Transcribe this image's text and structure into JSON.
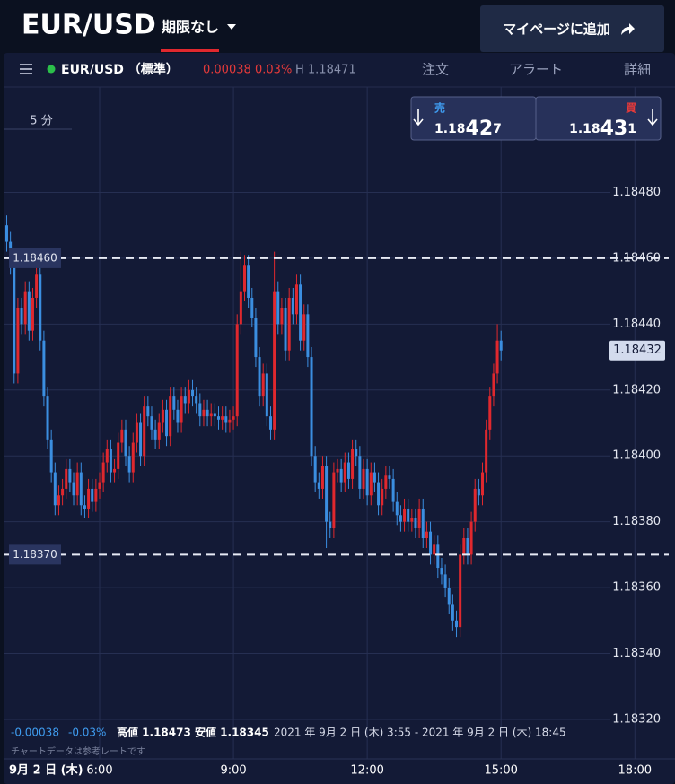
{
  "header": {
    "symbol": "EUR/USD",
    "period": "期限なし",
    "button": "マイページに追加"
  },
  "toolbar": {
    "symbol": "EUR/USD （標準）",
    "change": "0.00038",
    "change_pct": "0.03%",
    "high": "H 1.18471",
    "tabs": [
      "注文",
      "アラート",
      "詳細"
    ]
  },
  "timeframe": "5 分",
  "quote": {
    "sell_label": "売",
    "sell_parts": [
      "1.18",
      "42",
      "7"
    ],
    "buy_label": "買",
    "buy_parts": [
      "1.18",
      "43",
      "1"
    ]
  },
  "footer": {
    "change": "-0.00038",
    "change_pct": "-0.03%",
    "high": "高値 1.18473",
    "low": "安値 1.18345",
    "range": "2021 年 9月 2 日 (木) 3:55 - 2021 年 9月 2 日 (木) 18:45",
    "note": "チャートデータは参考レートです",
    "date": "9月 2 日 (木)"
  },
  "chart_data": {
    "type": "candlestick",
    "up_color": "#e0282e",
    "down_color": "#3b8ee0",
    "grid": true,
    "xlim": [
      "3:52",
      "18:54"
    ],
    "xticks": [
      "6:00",
      "9:00",
      "12:00",
      "15:00",
      "18:00"
    ],
    "ylim": [
      1.18308,
      1.18512
    ],
    "yticks": [
      {
        "value": 1.1848,
        "label": "1.18480"
      },
      {
        "value": 1.1846,
        "label": "1.18460"
      },
      {
        "value": 1.1844,
        "label": "1.18440"
      },
      {
        "value": 1.1842,
        "label": "1.18420"
      },
      {
        "value": 1.184,
        "label": "1.18400"
      },
      {
        "value": 1.1838,
        "label": "1.18380"
      },
      {
        "value": 1.1836,
        "label": "1.18360"
      },
      {
        "value": 1.1834,
        "label": "1.18340"
      },
      {
        "value": 1.1832,
        "label": "1.18320"
      }
    ],
    "levels": [
      {
        "value": 1.1846,
        "label": "1.18460"
      },
      {
        "value": 1.1837,
        "label": "1.18370"
      }
    ],
    "current": {
      "value": 1.18432,
      "label": "1.18432"
    },
    "x": [
      "3:55",
      "4:00",
      "4:05",
      "4:10",
      "4:15",
      "4:20",
      "4:25",
      "4:30",
      "4:35",
      "4:40",
      "4:45",
      "4:50",
      "4:55",
      "5:00",
      "5:05",
      "5:10",
      "5:15",
      "5:20",
      "5:25",
      "5:30",
      "5:35",
      "5:40",
      "5:45",
      "5:50",
      "5:55",
      "6:00",
      "6:05",
      "6:10",
      "6:15",
      "6:20",
      "6:25",
      "6:30",
      "6:35",
      "6:40",
      "6:45",
      "6:50",
      "6:55",
      "7:00",
      "7:05",
      "7:10",
      "7:15",
      "7:20",
      "7:25",
      "7:30",
      "7:35",
      "7:40",
      "7:45",
      "7:50",
      "7:55",
      "8:00",
      "8:05",
      "8:10",
      "8:15",
      "8:20",
      "8:25",
      "8:30",
      "8:35",
      "8:40",
      "8:45",
      "8:50",
      "8:55",
      "9:00",
      "9:05",
      "9:10",
      "9:15",
      "9:20",
      "9:25",
      "9:30",
      "9:35",
      "9:40",
      "9:45",
      "9:50",
      "9:55",
      "10:00",
      "10:05",
      "10:10",
      "10:15",
      "10:20",
      "10:25",
      "10:30",
      "10:35",
      "10:40",
      "10:45",
      "10:50",
      "10:55",
      "11:00",
      "11:05",
      "11:10",
      "11:15",
      "11:20",
      "11:25",
      "11:30",
      "11:35",
      "11:40",
      "11:45",
      "11:50",
      "11:55",
      "12:00",
      "12:05",
      "12:10",
      "12:15",
      "12:20",
      "12:25",
      "12:30",
      "12:35",
      "12:40",
      "12:45",
      "12:50",
      "12:55",
      "13:00",
      "13:05",
      "13:10",
      "13:15",
      "13:20",
      "13:25",
      "13:30",
      "13:35",
      "13:40",
      "13:45",
      "13:50",
      "13:55",
      "14:00",
      "14:05",
      "14:10",
      "14:15",
      "14:20",
      "14:25",
      "14:30",
      "14:35",
      "14:40",
      "14:45",
      "14:50",
      "14:55",
      "15:00"
    ],
    "open": [
      1.1847,
      1.18465,
      1.18458,
      1.18425,
      1.18445,
      1.1844,
      1.1845,
      1.18438,
      1.18448,
      1.18455,
      1.18435,
      1.18418,
      1.18405,
      1.18395,
      1.18385,
      1.18388,
      1.1839,
      1.18396,
      1.18392,
      1.18388,
      1.18395,
      1.18385,
      1.18384,
      1.1839,
      1.18386,
      1.1839,
      1.18392,
      1.18398,
      1.18402,
      1.18395,
      1.18396,
      1.18404,
      1.18408,
      1.184,
      1.18395,
      1.18404,
      1.1841,
      1.184,
      1.18415,
      1.18412,
      1.18408,
      1.18405,
      1.1841,
      1.18414,
      1.18406,
      1.18418,
      1.18414,
      1.1841,
      1.18418,
      1.18416,
      1.1842,
      1.18418,
      1.18416,
      1.18412,
      1.18414,
      1.18412,
      1.18413,
      1.18412,
      1.18411,
      1.18412,
      1.1841,
      1.18411,
      1.18412,
      1.1844,
      1.1845,
      1.18458,
      1.18448,
      1.18442,
      1.1843,
      1.18418,
      1.18425,
      1.18412,
      1.18408,
      1.1845,
      1.1844,
      1.18445,
      1.18432,
      1.18448,
      1.18443,
      1.18452,
      1.18435,
      1.18443,
      1.1843,
      1.184,
      1.18392,
      1.1839,
      1.18397,
      1.1838,
      1.18378,
      1.18395,
      1.18396,
      1.18392,
      1.18398,
      1.18393,
      1.18402,
      1.184,
      1.1839,
      1.18396,
      1.18388,
      1.18395,
      1.18392,
      1.18385,
      1.1839,
      1.18394,
      1.18393,
      1.18386,
      1.18382,
      1.1838,
      1.18384,
      1.1838,
      1.18381,
      1.18378,
      1.18384,
      1.18375,
      1.18377,
      1.1837,
      1.18373,
      1.18366,
      1.18364,
      1.1836,
      1.18355,
      1.1835,
      1.18348,
      1.1837,
      1.18375,
      1.1837,
      1.1838,
      1.1839,
      1.18388,
      1.18395,
      1.18408,
      1.18418,
      1.18425,
      1.18435
    ],
    "high": [
      1.18473,
      1.18468,
      1.18461,
      1.18448,
      1.18448,
      1.18453,
      1.18453,
      1.18451,
      1.18458,
      1.18458,
      1.18438,
      1.18421,
      1.18408,
      1.18398,
      1.18391,
      1.18393,
      1.18399,
      1.18399,
      1.18395,
      1.18398,
      1.18398,
      1.18388,
      1.18393,
      1.18393,
      1.18393,
      1.18395,
      1.18401,
      1.18405,
      1.18405,
      1.18399,
      1.18407,
      1.18411,
      1.18411,
      1.18403,
      1.18407,
      1.18413,
      1.18413,
      1.18418,
      1.18418,
      1.18415,
      1.18411,
      1.18413,
      1.18417,
      1.18417,
      1.18421,
      1.18421,
      1.18417,
      1.18421,
      1.18421,
      1.18423,
      1.18423,
      1.18421,
      1.18419,
      1.18417,
      1.18417,
      1.18416,
      1.18416,
      1.18415,
      1.18415,
      1.18415,
      1.18414,
      1.18415,
      1.18443,
      1.18462,
      1.18461,
      1.18461,
      1.18451,
      1.18445,
      1.18433,
      1.18428,
      1.18428,
      1.18415,
      1.18462,
      1.18453,
      1.18448,
      1.18448,
      1.18451,
      1.18451,
      1.18455,
      1.18455,
      1.18446,
      1.18446,
      1.18433,
      1.18403,
      1.18395,
      1.184,
      1.184,
      1.18383,
      1.18398,
      1.18399,
      1.18399,
      1.18401,
      1.18401,
      1.18405,
      1.18405,
      1.18403,
      1.18399,
      1.18399,
      1.18398,
      1.18398,
      1.18395,
      1.18393,
      1.18397,
      1.18397,
      1.18396,
      1.18389,
      1.18385,
      1.18387,
      1.18387,
      1.18384,
      1.18384,
      1.18387,
      1.18387,
      1.1838,
      1.1838,
      1.18376,
      1.18376,
      1.18369,
      1.18367,
      1.18363,
      1.18358,
      1.18353,
      1.18373,
      1.18378,
      1.18378,
      1.18383,
      1.18393,
      1.18393,
      1.18398,
      1.18411,
      1.18421,
      1.18428,
      1.1844,
      1.18438
    ],
    "low": [
      1.18462,
      1.18455,
      1.18422,
      1.18422,
      1.18437,
      1.18437,
      1.18435,
      1.18435,
      1.18445,
      1.18432,
      1.18415,
      1.18402,
      1.18392,
      1.18382,
      1.18382,
      1.18385,
      1.18387,
      1.18389,
      1.18385,
      1.18385,
      1.18382,
      1.18381,
      1.18381,
      1.18383,
      1.18383,
      1.18387,
      1.18389,
      1.18395,
      1.18392,
      1.18392,
      1.18393,
      1.18401,
      1.18397,
      1.18392,
      1.18392,
      1.18401,
      1.18397,
      1.18397,
      1.18409,
      1.18405,
      1.18402,
      1.18402,
      1.18407,
      1.18403,
      1.18403,
      1.18411,
      1.18407,
      1.18407,
      1.18413,
      1.18413,
      1.18415,
      1.18413,
      1.18409,
      1.18409,
      1.18409,
      1.18409,
      1.18409,
      1.18408,
      1.18408,
      1.18407,
      1.18407,
      1.18408,
      1.18409,
      1.18437,
      1.18447,
      1.18445,
      1.18439,
      1.18427,
      1.18415,
      1.18415,
      1.18409,
      1.18405,
      1.18405,
      1.18437,
      1.18437,
      1.18429,
      1.18429,
      1.1844,
      1.1844,
      1.18432,
      1.18432,
      1.18427,
      1.18397,
      1.18389,
      1.18387,
      1.18387,
      1.18372,
      1.18375,
      1.18375,
      1.18392,
      1.18389,
      1.18389,
      1.1839,
      1.1839,
      1.18397,
      1.18387,
      1.18387,
      1.18385,
      1.18385,
      1.18389,
      1.18382,
      1.18382,
      1.18387,
      1.1839,
      1.18383,
      1.18379,
      1.18377,
      1.18377,
      1.18377,
      1.18377,
      1.18375,
      1.18375,
      1.18372,
      1.18372,
      1.18367,
      1.18367,
      1.18363,
      1.18361,
      1.18357,
      1.18352,
      1.18347,
      1.18345,
      1.18345,
      1.18367,
      1.18367,
      1.18367,
      1.18377,
      1.18385,
      1.18385,
      1.18392,
      1.18405,
      1.18415,
      1.18422,
      1.18429
    ],
    "close": [
      1.18465,
      1.18458,
      1.18425,
      1.18445,
      1.1844,
      1.1845,
      1.18438,
      1.18448,
      1.18455,
      1.18435,
      1.18418,
      1.18405,
      1.18395,
      1.18385,
      1.18388,
      1.1839,
      1.18396,
      1.18392,
      1.18388,
      1.18395,
      1.18385,
      1.18384,
      1.1839,
      1.18386,
      1.1839,
      1.18392,
      1.18398,
      1.18402,
      1.18395,
      1.18396,
      1.18404,
      1.18408,
      1.184,
      1.18395,
      1.18404,
      1.1841,
      1.184,
      1.18415,
      1.18412,
      1.18408,
      1.18405,
      1.1841,
      1.18414,
      1.18406,
      1.18418,
      1.18414,
      1.1841,
      1.18418,
      1.18416,
      1.1842,
      1.18418,
      1.18416,
      1.18412,
      1.18414,
      1.18412,
      1.18413,
      1.18412,
      1.18411,
      1.18412,
      1.1841,
      1.18411,
      1.18412,
      1.1844,
      1.1845,
      1.18458,
      1.18448,
      1.18442,
      1.1843,
      1.18418,
      1.18425,
      1.18412,
      1.18408,
      1.1845,
      1.1844,
      1.18445,
      1.18432,
      1.18448,
      1.18443,
      1.18452,
      1.18435,
      1.18443,
      1.1843,
      1.184,
      1.18392,
      1.1839,
      1.18397,
      1.1838,
      1.18378,
      1.18395,
      1.18396,
      1.18392,
      1.18398,
      1.18393,
      1.18402,
      1.184,
      1.1839,
      1.18396,
      1.18388,
      1.18395,
      1.18392,
      1.18385,
      1.1839,
      1.18394,
      1.18393,
      1.18386,
      1.18382,
      1.1838,
      1.18384,
      1.1838,
      1.18381,
      1.18378,
      1.18384,
      1.18375,
      1.18377,
      1.1837,
      1.18373,
      1.18366,
      1.18364,
      1.1836,
      1.18355,
      1.1835,
      1.18348,
      1.1837,
      1.18375,
      1.1837,
      1.1838,
      1.1839,
      1.18388,
      1.18395,
      1.18408,
      1.18418,
      1.18425,
      1.18435,
      1.18432
    ]
  }
}
